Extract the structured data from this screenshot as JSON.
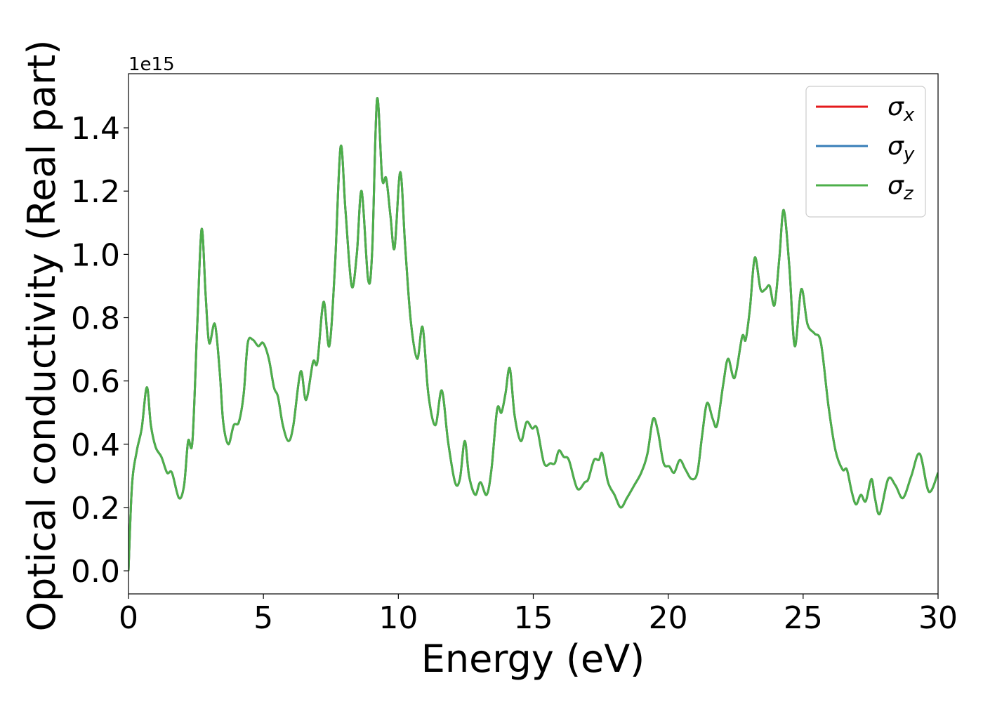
{
  "chart_data": {
    "type": "line",
    "xlabel": "Energy (eV)",
    "ylabel": "Optical conductivity (Real part)",
    "offset_label": "1e15",
    "xlim": [
      0,
      30
    ],
    "xticks": [
      0,
      5,
      10,
      15,
      20,
      25,
      30
    ],
    "ylim": [
      -0.073,
      1.571
    ],
    "yticks": [
      {
        "value": 0,
        "label": "0.0"
      },
      0.2,
      0.4,
      0.6,
      0.8,
      {
        "value": 1,
        "label": "1.0"
      },
      1.2,
      1.4
    ],
    "legend": "upper right",
    "x": [
      0,
      0.13,
      0.31,
      0.49,
      0.68,
      0.83,
      1.01,
      1.22,
      1.43,
      1.61,
      1.87,
      2.06,
      2.21,
      2.37,
      2.55,
      2.71,
      2.86,
      2.99,
      3.2,
      3.38,
      3.51,
      3.7,
      3.9,
      4.09,
      4.27,
      4.42,
      4.61,
      4.81,
      4.99,
      5.2,
      5.39,
      5.54,
      5.72,
      5.93,
      6.11,
      6.38,
      6.58,
      6.84,
      7,
      7.23,
      7.44,
      7.65,
      7.86,
      8.04,
      8.27,
      8.46,
      8.64,
      8.88,
      9.03,
      9.21,
      9.4,
      9.55,
      9.71,
      9.86,
      10.07,
      10.25,
      10.46,
      10.7,
      10.9,
      11.11,
      11.37,
      11.61,
      11.84,
      12.1,
      12.28,
      12.46,
      12.62,
      12.85,
      13.04,
      13.27,
      13.45,
      13.66,
      13.82,
      13.97,
      14.13,
      14.31,
      14.54,
      14.75,
      14.96,
      15.14,
      15.4,
      15.64,
      15.8,
      15.95,
      16.13,
      16.32,
      16.63,
      16.91,
      17.04,
      17.25,
      17.43,
      17.56,
      17.77,
      18.01,
      18.24,
      18.47,
      18.74,
      19,
      19.23,
      19.44,
      19.62,
      19.83,
      20.04,
      20.22,
      20.43,
      20.64,
      20.87,
      21.08,
      21.26,
      21.44,
      21.65,
      21.81,
      22.04,
      22.22,
      22.46,
      22.74,
      22.87,
      23.03,
      23.21,
      23.42,
      23.6,
      23.76,
      23.94,
      24.12,
      24.28,
      24.49,
      24.69,
      24.93,
      25.16,
      25.42,
      25.66,
      25.94,
      26.2,
      26.46,
      26.62,
      26.8,
      26.96,
      27.14,
      27.32,
      27.53,
      27.66,
      27.84,
      28.15,
      28.42,
      28.7,
      29.01,
      29.32,
      29.66,
      30
    ],
    "series": [
      {
        "name": "σx",
        "color": "#e41a1c",
        "values": [
          0,
          0.27,
          0.38,
          0.45,
          0.58,
          0.46,
          0.39,
          0.36,
          0.31,
          0.31,
          0.23,
          0.27,
          0.41,
          0.41,
          0.78,
          1.08,
          0.87,
          0.72,
          0.78,
          0.63,
          0.47,
          0.4,
          0.46,
          0.47,
          0.56,
          0.72,
          0.73,
          0.71,
          0.72,
          0.67,
          0.58,
          0.55,
          0.46,
          0.41,
          0.46,
          0.63,
          0.54,
          0.66,
          0.66,
          0.85,
          0.71,
          0.96,
          1.34,
          1.14,
          0.9,
          1,
          1.2,
          0.92,
          1.01,
          1.49,
          1.24,
          1.24,
          1.12,
          1.02,
          1.26,
          1.03,
          0.79,
          0.67,
          0.77,
          0.56,
          0.46,
          0.57,
          0.41,
          0.28,
          0.29,
          0.41,
          0.3,
          0.24,
          0.28,
          0.24,
          0.32,
          0.51,
          0.5,
          0.56,
          0.64,
          0.49,
          0.41,
          0.47,
          0.45,
          0.45,
          0.34,
          0.34,
          0.34,
          0.38,
          0.36,
          0.35,
          0.26,
          0.28,
          0.29,
          0.35,
          0.35,
          0.37,
          0.28,
          0.24,
          0.2,
          0.23,
          0.27,
          0.31,
          0.37,
          0.48,
          0.44,
          0.34,
          0.33,
          0.31,
          0.35,
          0.32,
          0.29,
          0.31,
          0.43,
          0.53,
          0.48,
          0.46,
          0.59,
          0.67,
          0.61,
          0.74,
          0.73,
          0.83,
          0.99,
          0.89,
          0.89,
          0.9,
          0.84,
          0.99,
          1.14,
          0.96,
          0.71,
          0.89,
          0.78,
          0.75,
          0.72,
          0.52,
          0.38,
          0.32,
          0.32,
          0.25,
          0.21,
          0.24,
          0.22,
          0.29,
          0.23,
          0.18,
          0.29,
          0.27,
          0.23,
          0.3,
          0.37,
          0.25,
          0.31
        ]
      },
      {
        "name": "σy",
        "color": "#377eb8",
        "values": [
          0,
          0.27,
          0.38,
          0.45,
          0.58,
          0.46,
          0.39,
          0.36,
          0.31,
          0.31,
          0.23,
          0.27,
          0.41,
          0.41,
          0.78,
          1.08,
          0.87,
          0.72,
          0.78,
          0.63,
          0.47,
          0.4,
          0.46,
          0.47,
          0.56,
          0.72,
          0.73,
          0.71,
          0.72,
          0.67,
          0.58,
          0.55,
          0.46,
          0.41,
          0.46,
          0.63,
          0.54,
          0.66,
          0.66,
          0.85,
          0.71,
          0.96,
          1.34,
          1.14,
          0.9,
          1,
          1.2,
          0.92,
          1.01,
          1.49,
          1.24,
          1.24,
          1.12,
          1.02,
          1.26,
          1.03,
          0.79,
          0.67,
          0.77,
          0.56,
          0.46,
          0.57,
          0.41,
          0.28,
          0.29,
          0.41,
          0.3,
          0.24,
          0.28,
          0.24,
          0.32,
          0.51,
          0.5,
          0.56,
          0.64,
          0.49,
          0.41,
          0.47,
          0.45,
          0.45,
          0.34,
          0.34,
          0.34,
          0.38,
          0.36,
          0.35,
          0.26,
          0.28,
          0.29,
          0.35,
          0.35,
          0.37,
          0.28,
          0.24,
          0.2,
          0.23,
          0.27,
          0.31,
          0.37,
          0.48,
          0.44,
          0.34,
          0.33,
          0.31,
          0.35,
          0.32,
          0.29,
          0.31,
          0.43,
          0.53,
          0.48,
          0.46,
          0.59,
          0.67,
          0.61,
          0.74,
          0.73,
          0.83,
          0.99,
          0.89,
          0.89,
          0.9,
          0.84,
          0.99,
          1.14,
          0.96,
          0.71,
          0.89,
          0.78,
          0.75,
          0.72,
          0.52,
          0.38,
          0.32,
          0.32,
          0.25,
          0.21,
          0.24,
          0.22,
          0.29,
          0.23,
          0.18,
          0.29,
          0.27,
          0.23,
          0.3,
          0.37,
          0.25,
          0.31
        ]
      },
      {
        "name": "σz",
        "color": "#4daf4a",
        "values": [
          0,
          0.27,
          0.38,
          0.45,
          0.58,
          0.46,
          0.39,
          0.36,
          0.31,
          0.31,
          0.23,
          0.27,
          0.41,
          0.41,
          0.78,
          1.08,
          0.87,
          0.72,
          0.78,
          0.63,
          0.47,
          0.4,
          0.46,
          0.47,
          0.56,
          0.72,
          0.73,
          0.71,
          0.72,
          0.67,
          0.58,
          0.55,
          0.46,
          0.41,
          0.46,
          0.63,
          0.54,
          0.66,
          0.66,
          0.85,
          0.71,
          0.96,
          1.34,
          1.14,
          0.9,
          1,
          1.2,
          0.92,
          1.01,
          1.49,
          1.24,
          1.24,
          1.12,
          1.02,
          1.26,
          1.03,
          0.79,
          0.67,
          0.77,
          0.56,
          0.46,
          0.57,
          0.41,
          0.28,
          0.29,
          0.41,
          0.3,
          0.24,
          0.28,
          0.24,
          0.32,
          0.51,
          0.5,
          0.56,
          0.64,
          0.49,
          0.41,
          0.47,
          0.45,
          0.45,
          0.34,
          0.34,
          0.34,
          0.38,
          0.36,
          0.35,
          0.26,
          0.28,
          0.29,
          0.35,
          0.35,
          0.37,
          0.28,
          0.24,
          0.2,
          0.23,
          0.27,
          0.31,
          0.37,
          0.48,
          0.44,
          0.34,
          0.33,
          0.31,
          0.35,
          0.32,
          0.29,
          0.31,
          0.43,
          0.53,
          0.48,
          0.46,
          0.59,
          0.67,
          0.61,
          0.74,
          0.73,
          0.83,
          0.99,
          0.89,
          0.89,
          0.9,
          0.84,
          0.99,
          1.14,
          0.96,
          0.71,
          0.89,
          0.78,
          0.75,
          0.72,
          0.52,
          0.38,
          0.32,
          0.32,
          0.25,
          0.21,
          0.24,
          0.22,
          0.29,
          0.23,
          0.18,
          0.29,
          0.27,
          0.23,
          0.3,
          0.37,
          0.25,
          0.31
        ]
      }
    ]
  }
}
